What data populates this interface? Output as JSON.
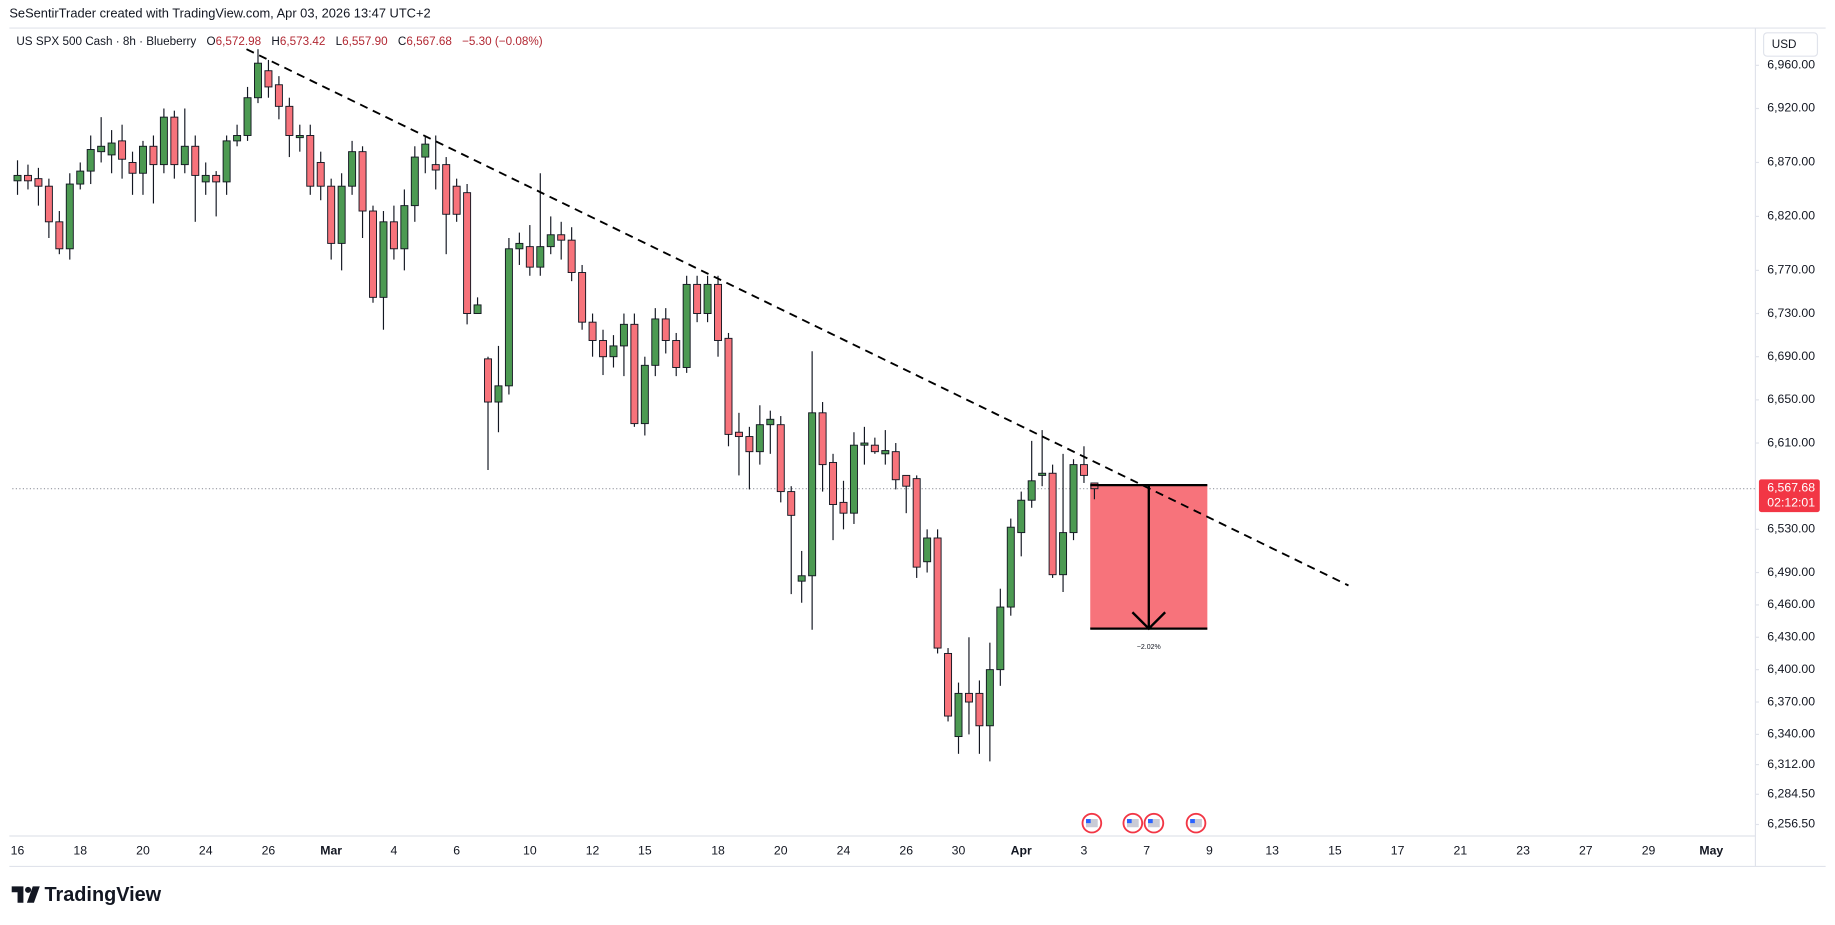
{
  "header": {
    "watermark": "SeSentirTrader created with TradingView.com, Apr 03, 2026 13:47 UTC+2"
  },
  "chart_data": {
    "type": "candlestick",
    "title": "US SPX 500 Cash · 8h · Blueberry",
    "ohlc_legend": [
      {
        "key": "O",
        "value": "6,572.98"
      },
      {
        "key": "H",
        "value": "6,573.42"
      },
      {
        "key": "L",
        "value": "6,557.90"
      },
      {
        "key": "C",
        "value": "6,567.68"
      }
    ],
    "change": "−5.30 (−0.08%)",
    "currency": "USD",
    "categories": [
      "16",
      null,
      null,
      null,
      null,
      null,
      "18",
      null,
      null,
      null,
      null,
      null,
      "20",
      null,
      null,
      null,
      null,
      null,
      "24",
      null,
      null,
      null,
      null,
      null,
      "26",
      null,
      null,
      null,
      null,
      null,
      "Mar",
      null,
      null,
      null,
      null,
      null,
      "4",
      null,
      null,
      null,
      null,
      null,
      "6",
      null,
      null,
      null,
      null,
      null,
      null,
      "10",
      null,
      null,
      null,
      null,
      null,
      "12",
      null,
      null,
      null,
      null,
      "15",
      null,
      null,
      null,
      null,
      null,
      null,
      "18",
      null,
      null,
      null,
      null,
      null,
      "20",
      null,
      null,
      null,
      null,
      null,
      "24",
      null,
      null,
      null,
      null,
      null,
      "26",
      null,
      null,
      null,
      null,
      "30",
      null,
      null,
      null,
      null,
      null,
      "Apr",
      null,
      null,
      null,
      null,
      null,
      "3",
      null,
      null,
      null,
      null,
      null,
      "7",
      null,
      null,
      null,
      null,
      null,
      "9",
      null,
      null,
      null,
      null,
      null,
      "13",
      null,
      null,
      null,
      null,
      null,
      "15",
      null,
      null,
      null,
      null,
      null,
      "17",
      null,
      null,
      null,
      null,
      null,
      "21",
      null,
      null,
      null,
      null,
      null,
      "23",
      null,
      null,
      null,
      null,
      null,
      "27",
      null,
      null,
      null,
      null,
      null,
      "29",
      null,
      null,
      null,
      null,
      null,
      "May",
      null,
      null,
      null,
      null
    ],
    "open": [
      6853,
      6858,
      6855,
      6848,
      6815,
      6790,
      6850,
      6862,
      6880,
      6877,
      6890,
      6870,
      6860,
      6885,
      6868,
      6912,
      6868,
      6885,
      6852,
      6858,
      6852,
      6890,
      6895,
      6930,
      6955,
      6942,
      6922,
      6893,
      6895,
      6870,
      6848,
      6795,
      6848,
      6880,
      6825,
      6745,
      6815,
      6790,
      6830,
      6875,
      6868,
      6868,
      6848,
      6842,
      6730,
      6688,
      6648,
      6663,
      6790,
      6792,
      6773,
      6792,
      6803,
      6798,
      6768,
      6722,
      6705,
      6690,
      6700,
      6720,
      6628,
      6682,
      6725,
      6705,
      6680,
      6757,
      6730,
      6757,
      6707,
      6620,
      6616,
      6602,
      6627,
      6627,
      6565,
      6482,
      6487,
      6638,
      6592,
      6555,
      6545,
      6608,
      6608,
      6600,
      6602,
      6580,
      6577,
      6500,
      6522,
      6415,
      6338,
      6378,
      6378,
      6348,
      6400,
      6458,
      6527,
      6557,
      6580,
      6582,
      6488,
      6527,
      6590,
      6572.98,
      null,
      null,
      null,
      null,
      null,
      null,
      null,
      null,
      null,
      null,
      null,
      null,
      null,
      null,
      null,
      null,
      null,
      null,
      null,
      null,
      null,
      null,
      null,
      null,
      null,
      null,
      null,
      null,
      null,
      null,
      null,
      null,
      null,
      null,
      null,
      null,
      null,
      null,
      null,
      null,
      null,
      null,
      null,
      null,
      null,
      null,
      null,
      null,
      null,
      null,
      null,
      null,
      null,
      null,
      null,
      null,
      null,
      null,
      null,
      null,
      null,
      null,
      null
    ],
    "high": [
      6872,
      6868,
      6865,
      6855,
      6825,
      6860,
      6870,
      6895,
      6912,
      6900,
      6905,
      6880,
      6890,
      6895,
      6920,
      6918,
      6920,
      6895,
      6870,
      6862,
      6895,
      6905,
      6940,
      6975,
      6965,
      6950,
      6930,
      6905,
      6905,
      6880,
      6855,
      6860,
      6890,
      6885,
      6830,
      6825,
      6830,
      6845,
      6885,
      6895,
      6895,
      6875,
      6855,
      6850,
      6745,
      6690,
      6700,
      6800,
      6805,
      6812,
      6860,
      6820,
      6815,
      6810,
      6775,
      6730,
      6715,
      6710,
      6730,
      6730,
      6690,
      6735,
      6735,
      6712,
      6765,
      6765,
      6765,
      6765,
      6712,
      6638,
      6625,
      6645,
      6640,
      6635,
      6570,
      6510,
      6695,
      6648,
      6600,
      6575,
      6620,
      6625,
      6615,
      6622,
      6610,
      6580,
      6580,
      6530,
      6530,
      6420,
      6388,
      6430,
      6390,
      6425,
      6475,
      6540,
      6565,
      6612,
      6622,
      6590,
      6600,
      6595,
      6607,
      6573.42,
      null,
      null,
      null,
      null,
      null,
      null,
      null,
      null,
      null,
      null,
      null,
      null,
      null,
      null,
      null,
      null,
      null,
      null,
      null,
      null,
      null,
      null,
      null,
      null,
      null,
      null,
      null,
      null,
      null,
      null,
      null,
      null,
      null,
      null,
      null,
      null,
      null,
      null,
      null,
      null,
      null,
      null,
      null,
      null,
      null,
      null,
      null,
      null,
      null,
      null,
      null,
      null,
      null,
      null,
      null,
      null,
      null,
      null,
      null,
      null,
      null,
      null,
      null
    ],
    "low": [
      6840,
      6845,
      6830,
      6800,
      6785,
      6780,
      6845,
      6850,
      6870,
      6860,
      6855,
      6840,
      6840,
      6832,
      6860,
      6855,
      6860,
      6815,
      6840,
      6820,
      6840,
      6885,
      6890,
      6925,
      6930,
      6910,
      6875,
      6880,
      6840,
      6835,
      6780,
      6770,
      6840,
      6800,
      6740,
      6715,
      6780,
      6770,
      6815,
      6860,
      6845,
      6785,
      6815,
      6720,
      6730,
      6585,
      6620,
      6655,
      6775,
      6765,
      6765,
      6785,
      6780,
      6760,
      6715,
      6690,
      6673,
      6680,
      6672,
      6625,
      6617,
      6672,
      6693,
      6672,
      6675,
      6722,
      6722,
      6690,
      6607,
      6580,
      6567,
      6590,
      6600,
      6555,
      6470,
      6462,
      6437,
      6565,
      6520,
      6530,
      6535,
      6590,
      6600,
      6590,
      6567,
      6545,
      6485,
      6490,
      6415,
      6352,
      6322,
      6340,
      6322,
      6315,
      6385,
      6450,
      6505,
      6550,
      6570,
      6485,
      6472,
      6520,
      6573,
      6557.9,
      null,
      null,
      null,
      null,
      null,
      null,
      null,
      null,
      null,
      null,
      null,
      null,
      null,
      null,
      null,
      null,
      null,
      null,
      null,
      null,
      null,
      null,
      null,
      null,
      null,
      null,
      null,
      null,
      null,
      null,
      null,
      null,
      null,
      null,
      null,
      null,
      null,
      null,
      null,
      null,
      null,
      null,
      null,
      null,
      null,
      null,
      null,
      null,
      null,
      null,
      null,
      null,
      null,
      null,
      null,
      null,
      null,
      null,
      null,
      null,
      null,
      null,
      null
    ],
    "close": [
      6858,
      6853,
      6848,
      6815,
      6790,
      6850,
      6862,
      6882,
      6885,
      6888,
      6873,
      6860,
      6885,
      6868,
      6912,
      6868,
      6885,
      6858,
      6858,
      6852,
      6890,
      6895,
      6930,
      6962,
      6940,
      6922,
      6895,
      6895,
      6848,
      6848,
      6795,
      6848,
      6880,
      6825,
      6745,
      6815,
      6790,
      6830,
      6875,
      6887,
      6863,
      6822,
      6822,
      6730,
      6738,
      6648,
      6663,
      6790,
      6795,
      6773,
      6792,
      6803,
      6798,
      6768,
      6722,
      6705,
      6690,
      6700,
      6720,
      6628,
      6682,
      6725,
      6705,
      6680,
      6757,
      6730,
      6757,
      6705,
      6618,
      6616,
      6602,
      6627,
      6632,
      6565,
      6543,
      6487,
      6638,
      6590,
      6553,
      6545,
      6608,
      6610,
      6602,
      6603,
      6576,
      6570,
      6495,
      6522,
      6420,
      6357,
      6378,
      6370,
      6348,
      6400,
      6458,
      6532,
      6557,
      6575,
      6582,
      6488,
      6527,
      6590,
      6580,
      6567.68,
      null,
      null,
      null,
      null,
      null,
      null,
      null,
      null,
      null,
      null,
      null,
      null,
      null,
      null,
      null,
      null,
      null,
      null,
      null,
      null,
      null,
      null,
      null,
      null,
      null,
      null,
      null,
      null,
      null,
      null,
      null,
      null,
      null,
      null,
      null,
      null,
      null,
      null,
      null,
      null,
      null,
      null,
      null,
      null,
      null,
      null,
      null,
      null,
      null,
      null,
      null,
      null,
      null,
      null,
      null,
      null,
      null,
      null,
      null,
      null,
      null,
      null,
      null
    ],
    "up_color": "#4c9a52",
    "down_color": "#f7737b",
    "wick_color": "#131722",
    "ylim": [
      6248,
      6988
    ],
    "yticks": [
      {
        "value": 6960,
        "label": "6,960.00"
      },
      {
        "value": 6920,
        "label": "6,920.00"
      },
      {
        "value": 6870,
        "label": "6,870.00"
      },
      {
        "value": 6820,
        "label": "6,820.00"
      },
      {
        "value": 6770,
        "label": "6,770.00"
      },
      {
        "value": 6730,
        "label": "6,730.00"
      },
      {
        "value": 6690,
        "label": "6,690.00"
      },
      {
        "value": 6650,
        "label": "6,650.00"
      },
      {
        "value": 6610,
        "label": "6,610.00"
      },
      {
        "value": 6530,
        "label": "6,530.00"
      },
      {
        "value": 6490,
        "label": "6,490.00"
      },
      {
        "value": 6460,
        "label": "6,460.00"
      },
      {
        "value": 6430,
        "label": "6,430.00"
      },
      {
        "value": 6400,
        "label": "6,400.00"
      },
      {
        "value": 6370,
        "label": "6,370.00"
      },
      {
        "value": 6340,
        "label": "6,340.00"
      },
      {
        "value": 6312,
        "label": "6,312.00"
      },
      {
        "value": 6284.5,
        "label": "6,284.50"
      },
      {
        "value": 6256.5,
        "label": "6,256.50"
      }
    ],
    "grid": false,
    "last_price": {
      "value": 6567.68,
      "label": "6,567.68",
      "countdown": "02:12:01",
      "color": "#f23645"
    },
    "trendline": {
      "start": [
        21.9,
        6975
      ],
      "end": [
        127.3,
        6478
      ]
    },
    "projection": {
      "x": [
        102.6,
        113.8
      ],
      "from": 6571,
      "to": 6438,
      "label": "−2.02%",
      "color": "#f7737b"
    }
  },
  "footer": {
    "logo": "TradingView"
  }
}
